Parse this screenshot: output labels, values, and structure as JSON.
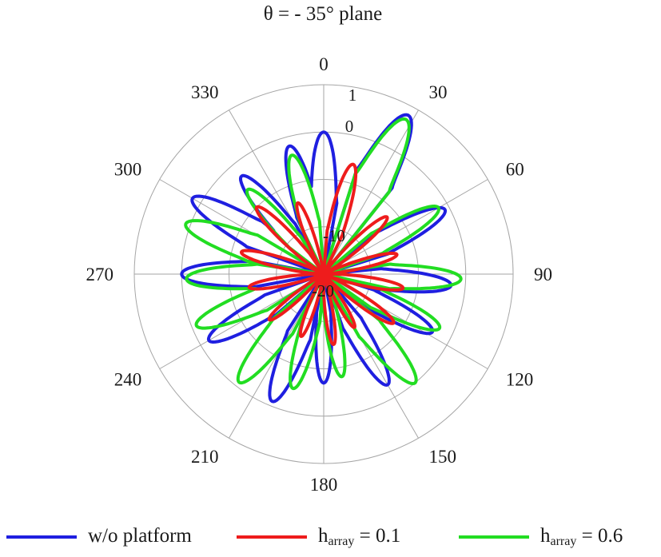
{
  "chart_data": {
    "type": "polar",
    "title": "θ = - 35° plane",
    "angle_ticks": [
      "0",
      "30",
      "60",
      "90",
      "120",
      "150",
      "180",
      "210",
      "240",
      "270",
      "300",
      "330"
    ],
    "radial_ticks": [
      "1",
      "0",
      "-10",
      "-20"
    ],
    "radial_axis": {
      "min": -30,
      "max": 10
    },
    "grid": true,
    "legend_position": "bottom",
    "series": [
      {
        "name": "w/o platform",
        "legend_main": "w/o platform",
        "legend_sub": "",
        "legend_tail": "",
        "color": "#1f1fe0",
        "lobes": [
          {
            "az": 0,
            "peak": 0
          },
          {
            "az": 28,
            "peak": 8
          },
          {
            "az": 62,
            "peak": -1
          },
          {
            "az": 95,
            "peak": -3
          },
          {
            "az": 118,
            "peak": -4
          },
          {
            "az": 150,
            "peak": -3
          },
          {
            "az": 180,
            "peak": -7
          },
          {
            "az": 202,
            "peak": -1
          },
          {
            "az": 240,
            "peak": -2
          },
          {
            "az": 270,
            "peak": 0
          },
          {
            "az": 300,
            "peak": 2
          },
          {
            "az": 320,
            "peak": -3
          },
          {
            "az": 345,
            "peak": -2
          }
        ]
      },
      {
        "name": "h_array = 0.1",
        "legend_main": "h",
        "legend_sub": "array",
        "legend_tail": " = 0.1",
        "color": "#ee1c1c",
        "lobes": [
          {
            "az": 15,
            "peak": -6
          },
          {
            "az": 48,
            "peak": -12
          },
          {
            "az": 75,
            "peak": -14
          },
          {
            "az": 100,
            "peak": -13
          },
          {
            "az": 125,
            "peak": -12
          },
          {
            "az": 150,
            "peak": -17
          },
          {
            "az": 172,
            "peak": -15
          },
          {
            "az": 200,
            "peak": -16
          },
          {
            "az": 230,
            "peak": -15
          },
          {
            "az": 260,
            "peak": -14
          },
          {
            "az": 285,
            "peak": -12
          },
          {
            "az": 315,
            "peak": -10
          },
          {
            "az": 340,
            "peak": -14
          }
        ]
      },
      {
        "name": "h_array = 0.6",
        "legend_main": "h",
        "legend_sub": "array",
        "legend_tail": " = 0.6",
        "color": "#22dd22",
        "lobes": [
          {
            "az": 28,
            "peak": 7
          },
          {
            "az": 60,
            "peak": -2
          },
          {
            "az": 92,
            "peak": -1
          },
          {
            "az": 115,
            "peak": -3
          },
          {
            "az": 140,
            "peak": 0
          },
          {
            "az": 170,
            "peak": -8
          },
          {
            "az": 195,
            "peak": -5
          },
          {
            "az": 218,
            "peak": -1
          },
          {
            "az": 248,
            "peak": -1
          },
          {
            "az": 268,
            "peak": -1
          },
          {
            "az": 290,
            "peak": 1
          },
          {
            "az": 318,
            "peak": -6
          },
          {
            "az": 345,
            "peak": -4
          }
        ]
      }
    ]
  }
}
